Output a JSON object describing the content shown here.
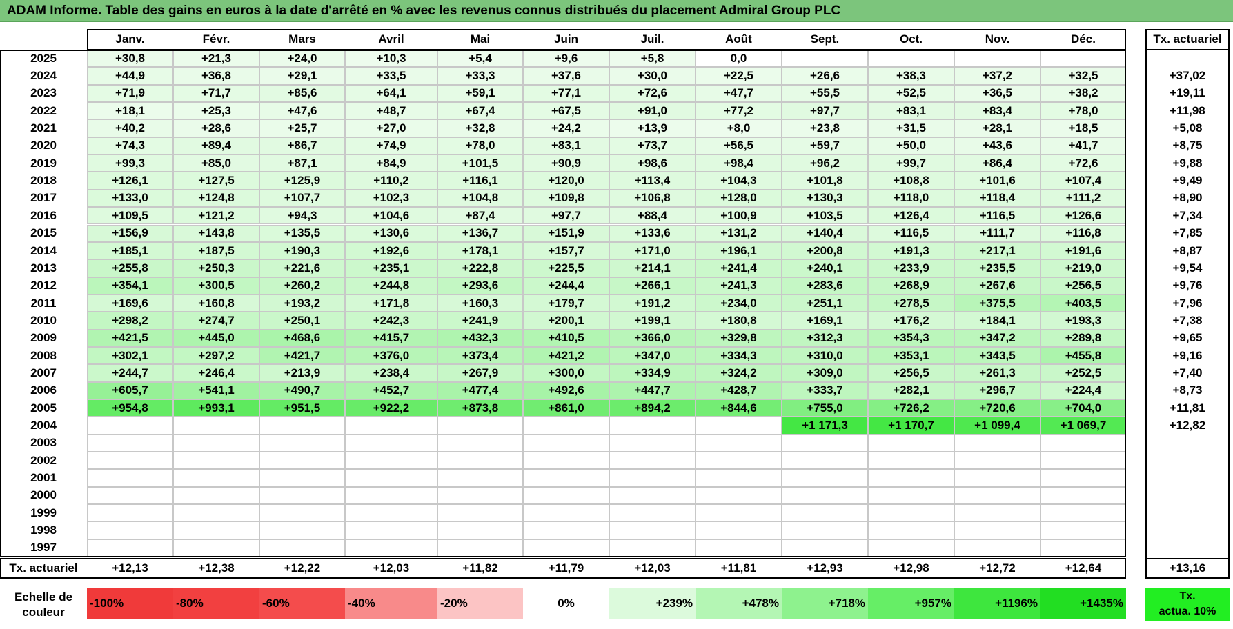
{
  "title": "ADAM Informe. Table des gains en euros à la date d'arrêté en % avec les revenus connus distribués du placement Admiral Group PLC",
  "chart_data": {
    "type": "table",
    "months": [
      "Janv.",
      "Févr.",
      "Mars",
      "Avril",
      "Mai",
      "Juin",
      "Juil.",
      "Août",
      "Sept.",
      "Oct.",
      "Nov.",
      "Déc."
    ],
    "rate_header": "Tx. actuariel",
    "rows": [
      {
        "year": "2025",
        "values": [
          "+30,8",
          "+21,3",
          "+24,0",
          "+10,3",
          "+5,4",
          "+9,6",
          "+5,8",
          "0,0",
          "",
          "",
          "",
          ""
        ],
        "rate": ""
      },
      {
        "year": "2024",
        "values": [
          "+44,9",
          "+36,8",
          "+29,1",
          "+33,5",
          "+33,3",
          "+37,6",
          "+30,0",
          "+22,5",
          "+26,6",
          "+38,3",
          "+37,2",
          "+32,5"
        ],
        "rate": "+37,02"
      },
      {
        "year": "2023",
        "values": [
          "+71,9",
          "+71,7",
          "+85,6",
          "+64,1",
          "+59,1",
          "+77,1",
          "+72,6",
          "+47,7",
          "+55,5",
          "+52,5",
          "+36,5",
          "+38,2"
        ],
        "rate": "+19,11"
      },
      {
        "year": "2022",
        "values": [
          "+18,1",
          "+25,3",
          "+47,6",
          "+48,7",
          "+67,4",
          "+67,5",
          "+91,0",
          "+77,2",
          "+97,7",
          "+83,1",
          "+83,4",
          "+78,0"
        ],
        "rate": "+11,98"
      },
      {
        "year": "2021",
        "values": [
          "+40,2",
          "+28,6",
          "+25,7",
          "+27,0",
          "+32,8",
          "+24,2",
          "+13,9",
          "+8,0",
          "+23,8",
          "+31,5",
          "+28,1",
          "+18,5"
        ],
        "rate": "+5,08"
      },
      {
        "year": "2020",
        "values": [
          "+74,3",
          "+89,4",
          "+86,7",
          "+74,9",
          "+78,0",
          "+83,1",
          "+73,7",
          "+56,5",
          "+59,7",
          "+50,0",
          "+43,6",
          "+41,7"
        ],
        "rate": "+8,75"
      },
      {
        "year": "2019",
        "values": [
          "+99,3",
          "+85,0",
          "+87,1",
          "+84,9",
          "+101,5",
          "+90,9",
          "+98,6",
          "+98,4",
          "+96,2",
          "+99,7",
          "+86,4",
          "+72,6"
        ],
        "rate": "+9,88"
      },
      {
        "year": "2018",
        "values": [
          "+126,1",
          "+127,5",
          "+125,9",
          "+110,2",
          "+116,1",
          "+120,0",
          "+113,4",
          "+104,3",
          "+101,8",
          "+108,8",
          "+101,6",
          "+107,4"
        ],
        "rate": "+9,49"
      },
      {
        "year": "2017",
        "values": [
          "+133,0",
          "+124,8",
          "+107,7",
          "+102,3",
          "+104,8",
          "+109,8",
          "+106,8",
          "+128,0",
          "+130,3",
          "+118,0",
          "+118,4",
          "+111,2"
        ],
        "rate": "+8,90"
      },
      {
        "year": "2016",
        "values": [
          "+109,5",
          "+121,2",
          "+94,3",
          "+104,6",
          "+87,4",
          "+97,7",
          "+88,4",
          "+100,9",
          "+103,5",
          "+126,4",
          "+116,5",
          "+126,6"
        ],
        "rate": "+7,34"
      },
      {
        "year": "2015",
        "values": [
          "+156,9",
          "+143,8",
          "+135,5",
          "+130,6",
          "+136,7",
          "+151,9",
          "+133,6",
          "+131,2",
          "+140,4",
          "+116,5",
          "+111,7",
          "+116,8"
        ],
        "rate": "+7,85"
      },
      {
        "year": "2014",
        "values": [
          "+185,1",
          "+187,5",
          "+190,3",
          "+192,6",
          "+178,1",
          "+157,7",
          "+171,0",
          "+196,1",
          "+200,8",
          "+191,3",
          "+217,1",
          "+191,6"
        ],
        "rate": "+8,87"
      },
      {
        "year": "2013",
        "values": [
          "+255,8",
          "+250,3",
          "+221,6",
          "+235,1",
          "+222,8",
          "+225,5",
          "+214,1",
          "+241,4",
          "+240,1",
          "+233,9",
          "+235,5",
          "+219,0"
        ],
        "rate": "+9,54"
      },
      {
        "year": "2012",
        "values": [
          "+354,1",
          "+300,5",
          "+260,2",
          "+244,8",
          "+293,6",
          "+244,4",
          "+266,1",
          "+241,3",
          "+283,6",
          "+268,9",
          "+267,6",
          "+256,5"
        ],
        "rate": "+9,76"
      },
      {
        "year": "2011",
        "values": [
          "+169,6",
          "+160,8",
          "+193,2",
          "+171,8",
          "+160,3",
          "+179,7",
          "+191,2",
          "+234,0",
          "+251,1",
          "+278,5",
          "+375,5",
          "+403,5"
        ],
        "rate": "+7,96"
      },
      {
        "year": "2010",
        "values": [
          "+298,2",
          "+274,7",
          "+250,1",
          "+242,3",
          "+241,9",
          "+200,1",
          "+199,1",
          "+180,8",
          "+169,1",
          "+176,2",
          "+184,1",
          "+193,3"
        ],
        "rate": "+7,38"
      },
      {
        "year": "2009",
        "values": [
          "+421,5",
          "+445,0",
          "+468,6",
          "+415,7",
          "+432,3",
          "+410,5",
          "+366,0",
          "+329,8",
          "+312,3",
          "+354,3",
          "+347,2",
          "+289,8"
        ],
        "rate": "+9,65"
      },
      {
        "year": "2008",
        "values": [
          "+302,1",
          "+297,2",
          "+421,7",
          "+376,0",
          "+373,4",
          "+421,2",
          "+347,0",
          "+334,3",
          "+310,0",
          "+353,1",
          "+343,5",
          "+455,8"
        ],
        "rate": "+9,16"
      },
      {
        "year": "2007",
        "values": [
          "+244,7",
          "+246,4",
          "+213,9",
          "+238,4",
          "+267,9",
          "+300,0",
          "+334,9",
          "+324,2",
          "+309,0",
          "+256,5",
          "+261,3",
          "+252,5"
        ],
        "rate": "+7,40"
      },
      {
        "year": "2006",
        "values": [
          "+605,7",
          "+541,1",
          "+490,7",
          "+452,7",
          "+477,4",
          "+492,6",
          "+447,7",
          "+428,7",
          "+333,7",
          "+282,1",
          "+296,7",
          "+224,4"
        ],
        "rate": "+8,73"
      },
      {
        "year": "2005",
        "values": [
          "+954,8",
          "+993,1",
          "+951,5",
          "+922,2",
          "+873,8",
          "+861,0",
          "+894,2",
          "+844,6",
          "+755,0",
          "+726,2",
          "+720,6",
          "+704,0"
        ],
        "rate": "+11,81"
      },
      {
        "year": "2004",
        "values": [
          "",
          "",
          "",
          "",
          "",
          "",
          "",
          "",
          "+1 171,3",
          "+1 170,7",
          "+1 099,4",
          "+1 069,7"
        ],
        "rate": "+12,82"
      },
      {
        "year": "2003",
        "values": [
          "",
          "",
          "",
          "",
          "",
          "",
          "",
          "",
          "",
          "",
          "",
          ""
        ],
        "rate": ""
      },
      {
        "year": "2002",
        "values": [
          "",
          "",
          "",
          "",
          "",
          "",
          "",
          "",
          "",
          "",
          "",
          ""
        ],
        "rate": ""
      },
      {
        "year": "2001",
        "values": [
          "",
          "",
          "",
          "",
          "",
          "",
          "",
          "",
          "",
          "",
          "",
          ""
        ],
        "rate": ""
      },
      {
        "year": "2000",
        "values": [
          "",
          "",
          "",
          "",
          "",
          "",
          "",
          "",
          "",
          "",
          "",
          ""
        ],
        "rate": ""
      },
      {
        "year": "1999",
        "values": [
          "",
          "",
          "",
          "",
          "",
          "",
          "",
          "",
          "",
          "",
          "",
          ""
        ],
        "rate": ""
      },
      {
        "year": "1998",
        "values": [
          "",
          "",
          "",
          "",
          "",
          "",
          "",
          "",
          "",
          "",
          "",
          ""
        ],
        "rate": ""
      },
      {
        "year": "1997",
        "values": [
          "",
          "",
          "",
          "",
          "",
          "",
          "",
          "",
          "",
          "",
          "",
          ""
        ],
        "rate": ""
      }
    ],
    "footer": {
      "label": "Tx. actuariel",
      "values": [
        "+12,13",
        "+12,38",
        "+12,22",
        "+12,03",
        "+11,82",
        "+11,79",
        "+12,03",
        "+11,81",
        "+12,93",
        "+12,98",
        "+12,72",
        "+12,64"
      ],
      "total": "+13,16"
    },
    "scale": {
      "label_line1": "Echelle de",
      "label_line2": "couleur",
      "items": [
        {
          "label": "-100%",
          "color": "#f03a3a"
        },
        {
          "label": "-80%",
          "color": "#f24040"
        },
        {
          "label": "-60%",
          "color": "#f44c4c"
        },
        {
          "label": "-40%",
          "color": "#f88a8a"
        },
        {
          "label": "-20%",
          "color": "#fcc4c4"
        },
        {
          "label": "0%",
          "color": "#ffffff"
        },
        {
          "label": "+239%",
          "color": "#dcfadc"
        },
        {
          "label": "+478%",
          "color": "#b4f6b4"
        },
        {
          "label": "+718%",
          "color": "#8ef28e"
        },
        {
          "label": "+957%",
          "color": "#66ee66"
        },
        {
          "label": "+1196%",
          "color": "#3ee63e"
        },
        {
          "label": "+1435%",
          "color": "#22de22"
        }
      ],
      "act_line1": "Tx.",
      "act_line2": "actua. 10%",
      "act_color": "#22ee22"
    },
    "colors": {
      "title_bg": "#7cc57c",
      "max_color_value": 1435
    }
  }
}
